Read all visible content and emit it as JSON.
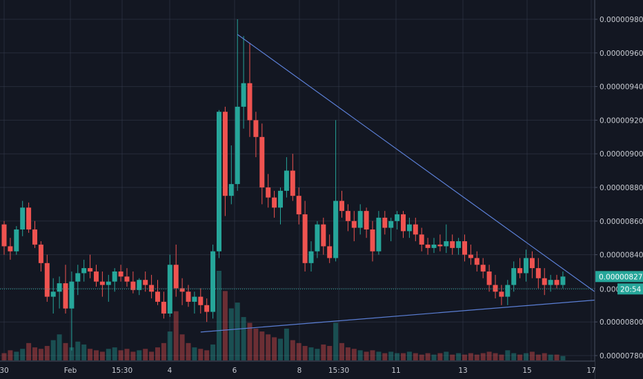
{
  "chart_data": {
    "type": "candlestick",
    "price_axis": {
      "range": [
        7.8e-06,
        9.8e-06
      ],
      "ticks": [
        "0.00000980",
        "0.00000960",
        "0.00000940",
        "0.00000920",
        "0.00000900",
        "0.00000880",
        "0.00000860",
        "0.00000840",
        "0.00000820",
        "0.00000800",
        "0.00000780"
      ]
    },
    "time_axis": {
      "labels": [
        "30",
        "Feb",
        "15:30",
        "4",
        "6",
        "8",
        "15:30",
        "11",
        "13",
        "15",
        "17"
      ]
    },
    "candles": [
      [
        8.58e-06,
        8.6e-06,
        8.4e-06,
        8.45e-06
      ],
      [
        8.45e-06,
        8.5e-06,
        8.37e-06,
        8.42e-06
      ],
      [
        8.42e-06,
        8.57e-06,
        8.4e-06,
        8.55e-06
      ],
      [
        8.55e-06,
        8.72e-06,
        8.51e-06,
        8.68e-06
      ],
      [
        8.68e-06,
        8.71e-06,
        8.53e-06,
        8.55e-06
      ],
      [
        8.55e-06,
        8.6e-06,
        8.44e-06,
        8.46e-06
      ],
      [
        8.46e-06,
        8.48e-06,
        8.3e-06,
        8.35e-06
      ],
      [
        8.35e-06,
        8.4e-06,
        8.12e-06,
        8.15e-06
      ],
      [
        8.15e-06,
        8.26e-06,
        8.05e-06,
        8.18e-06
      ],
      [
        8.18e-06,
        8.27e-06,
        8.08e-06,
        8.23e-06
      ],
      [
        8.23e-06,
        8.34e-06,
        8.05e-06,
        8.08e-06
      ],
      [
        8.08e-06,
        8.3e-06,
        7.83e-06,
        8.24e-06
      ],
      [
        8.24e-06,
        8.34e-06,
        8.16e-06,
        8.29e-06
      ],
      [
        8.29e-06,
        8.37e-06,
        8.24e-06,
        8.32e-06
      ],
      [
        8.32e-06,
        8.4e-06,
        8.26e-06,
        8.3e-06
      ],
      [
        8.3e-06,
        8.34e-06,
        8.21e-06,
        8.24e-06
      ],
      [
        8.24e-06,
        8.3e-06,
        8.15e-06,
        8.22e-06
      ],
      [
        8.22e-06,
        8.28e-06,
        8.12e-06,
        8.24e-06
      ],
      [
        8.24e-06,
        8.32e-06,
        8.18e-06,
        8.3e-06
      ],
      [
        8.3e-06,
        8.34e-06,
        8.24e-06,
        8.27e-06
      ],
      [
        8.27e-06,
        8.32e-06,
        8.21e-06,
        8.24e-06
      ],
      [
        8.24e-06,
        8.3e-06,
        8.17e-06,
        8.19e-06
      ],
      [
        8.19e-06,
        8.26e-06,
        8.16e-06,
        8.25e-06
      ],
      [
        8.25e-06,
        8.3e-06,
        8.18e-06,
        8.22e-06
      ],
      [
        8.22e-06,
        8.28e-06,
        8.14e-06,
        8.18e-06
      ],
      [
        8.18e-06,
        8.25e-06,
        8.1e-06,
        8.12e-06
      ],
      [
        8.12e-06,
        8.18e-06,
        8.02e-06,
        8.05e-06
      ],
      [
        8.05e-06,
        8.4e-06,
        8.03e-06,
        8.34e-06
      ],
      [
        8.34e-06,
        8.46e-06,
        8.15e-06,
        8.2e-06
      ],
      [
        8.2e-06,
        8.26e-06,
        8.1e-06,
        8.18e-06
      ],
      [
        8.18e-06,
        8.22e-06,
        8.09e-06,
        8.12e-06
      ],
      [
        8.12e-06,
        8.18e-06,
        8.05e-06,
        8.15e-06
      ],
      [
        8.15e-06,
        8.2e-06,
        8.05e-06,
        8.1e-06
      ],
      [
        8.1e-06,
        8.14e-06,
        8e-06,
        8.06e-06
      ],
      [
        8.06e-06,
        8.46e-06,
        8.02e-06,
        8.42e-06
      ],
      [
        8.42e-06,
        9.26e-06,
        8.38e-06,
        9.25e-06
      ],
      [
        9.25e-06,
        9.28e-06,
        8.63e-06,
        8.75e-06
      ],
      [
        8.75e-06,
        9.05e-06,
        8.7e-06,
        8.82e-06
      ],
      [
        8.82e-06,
        9.8e-06,
        8.78e-06,
        9.28e-06
      ],
      [
        9.28e-06,
        9.7e-06,
        9.15e-06,
        9.42e-06
      ],
      [
        9.42e-06,
        9.66e-06,
        9.1e-06,
        9.2e-06
      ],
      [
        9.2e-06,
        9.25e-06,
        8.98e-06,
        9.1e-06
      ],
      [
        9.1e-06,
        9.18e-06,
        8.7e-06,
        8.8e-06
      ],
      [
        8.8e-06,
        8.88e-06,
        8.68e-06,
        8.74e-06
      ],
      [
        8.74e-06,
        8.78e-06,
        8.62e-06,
        8.68e-06
      ],
      [
        8.68e-06,
        8.8e-06,
        8.58e-06,
        8.78e-06
      ],
      [
        8.78e-06,
        8.98e-06,
        8.74e-06,
        8.9e-06
      ],
      [
        8.9e-06,
        9e-06,
        8.72e-06,
        8.75e-06
      ],
      [
        8.75e-06,
        8.8e-06,
        8.58e-06,
        8.64e-06
      ],
      [
        8.64e-06,
        8.72e-06,
        8.3e-06,
        8.35e-06
      ],
      [
        8.35e-06,
        8.48e-06,
        8.3e-06,
        8.42e-06
      ],
      [
        8.42e-06,
        8.6e-06,
        8.38e-06,
        8.58e-06
      ],
      [
        8.58e-06,
        8.62e-06,
        8.4e-06,
        8.45e-06
      ],
      [
        8.45e-06,
        8.52e-06,
        8.35e-06,
        8.38e-06
      ],
      [
        8.38e-06,
        9.2e-06,
        8.36e-06,
        8.72e-06
      ],
      [
        8.72e-06,
        8.78e-06,
        8.62e-06,
        8.66e-06
      ],
      [
        8.66e-06,
        8.7e-06,
        8.54e-06,
        8.6e-06
      ],
      [
        8.6e-06,
        8.66e-06,
        8.48e-06,
        8.56e-06
      ],
      [
        8.56e-06,
        8.7e-06,
        8.52e-06,
        8.66e-06
      ],
      [
        8.66e-06,
        8.68e-06,
        8.5e-06,
        8.55e-06
      ],
      [
        8.55e-06,
        8.6e-06,
        8.36e-06,
        8.42e-06
      ],
      [
        8.42e-06,
        8.66e-06,
        8.4e-06,
        8.62e-06
      ],
      [
        8.62e-06,
        8.66e-06,
        8.52e-06,
        8.56e-06
      ],
      [
        8.56e-06,
        8.62e-06,
        8.48e-06,
        8.6e-06
      ],
      [
        8.6e-06,
        8.66e-06,
        8.55e-06,
        8.64e-06
      ],
      [
        8.64e-06,
        8.66e-06,
        8.5e-06,
        8.54e-06
      ],
      [
        8.54e-06,
        8.62e-06,
        8.5e-06,
        8.58e-06
      ],
      [
        8.58e-06,
        8.62e-06,
        8.48e-06,
        8.52e-06
      ],
      [
        8.52e-06,
        8.56e-06,
        8.42e-06,
        8.46e-06
      ],
      [
        8.46e-06,
        8.5e-06,
        8.4e-06,
        8.44e-06
      ],
      [
        8.44e-06,
        8.5e-06,
        8.41e-06,
        8.46e-06
      ],
      [
        8.46e-06,
        8.52e-06,
        8.42e-06,
        8.45e-06
      ],
      [
        8.45e-06,
        8.58e-06,
        8.41e-06,
        8.48e-06
      ],
      [
        8.48e-06,
        8.52e-06,
        8.4e-06,
        8.44e-06
      ],
      [
        8.44e-06,
        8.5e-06,
        8.4e-06,
        8.48e-06
      ],
      [
        8.48e-06,
        8.52e-06,
        8.36e-06,
        8.4e-06
      ],
      [
        8.4e-06,
        8.46e-06,
        8.34e-06,
        8.38e-06
      ],
      [
        8.38e-06,
        8.42e-06,
        8.3e-06,
        8.34e-06
      ],
      [
        8.34e-06,
        8.38e-06,
        8.26e-06,
        8.3e-06
      ],
      [
        8.3e-06,
        8.34e-06,
        8.18e-06,
        8.22e-06
      ],
      [
        8.22e-06,
        8.28e-06,
        8.14e-06,
        8.18e-06
      ],
      [
        8.18e-06,
        8.22e-06,
        8.1e-06,
        8.15e-06
      ],
      [
        8.15e-06,
        8.25e-06,
        8.1e-06,
        8.22e-06
      ],
      [
        8.22e-06,
        8.36e-06,
        8.18e-06,
        8.32e-06
      ],
      [
        8.32e-06,
        8.38e-06,
        8.26e-06,
        8.29e-06
      ],
      [
        8.29e-06,
        8.43e-06,
        8.24e-06,
        8.38e-06
      ],
      [
        8.38e-06,
        8.42e-06,
        8.26e-06,
        8.32e-06
      ],
      [
        8.32e-06,
        8.38e-06,
        8.2e-06,
        8.26e-06
      ],
      [
        8.26e-06,
        8.32e-06,
        8.16e-06,
        8.22e-06
      ],
      [
        8.22e-06,
        8.28e-06,
        8.18e-06,
        8.25e-06
      ],
      [
        8.25e-06,
        8.28e-06,
        8.2e-06,
        8.22e-06
      ],
      [
        8.22e-06,
        8.3e-06,
        8.2e-06,
        8.27e-06
      ]
    ],
    "volumes": [
      5,
      7,
      6,
      8,
      12,
      9,
      8,
      10,
      14,
      18,
      12,
      9,
      13,
      11,
      8,
      7,
      6,
      8,
      9,
      7,
      8,
      6,
      7,
      8,
      6,
      9,
      12,
      20,
      34,
      18,
      12,
      9,
      8,
      7,
      11,
      62,
      48,
      36,
      40,
      30,
      26,
      22,
      20,
      18,
      16,
      15,
      22,
      14,
      12,
      10,
      9,
      8,
      11,
      10,
      26,
      12,
      9,
      8,
      7,
      6,
      7,
      6,
      5,
      6,
      5,
      5,
      6,
      5,
      4,
      5,
      4,
      5,
      6,
      4,
      5,
      4,
      5,
      4,
      5,
      6,
      5,
      4,
      7,
      5,
      4,
      5,
      6,
      4,
      5,
      4,
      4,
      3
    ],
    "current_price": "0.00000827",
    "countdown": {
      "price": "0.000",
      "time": "20:54"
    },
    "trendlines": {
      "upper": {
        "from": [
          38,
          9.71e-06
        ],
        "to": [
          96,
          8.18e-06
        ]
      },
      "lower": {
        "from": [
          32,
          7.94e-06
        ],
        "to": [
          96,
          8.13e-06
        ]
      }
    },
    "colors": {
      "background": "#131722",
      "grid": "#363c4e",
      "up": "#26a69a",
      "down": "#ef5350",
      "trendline": "#5b7fd6",
      "price_line": "#26a69a"
    }
  }
}
